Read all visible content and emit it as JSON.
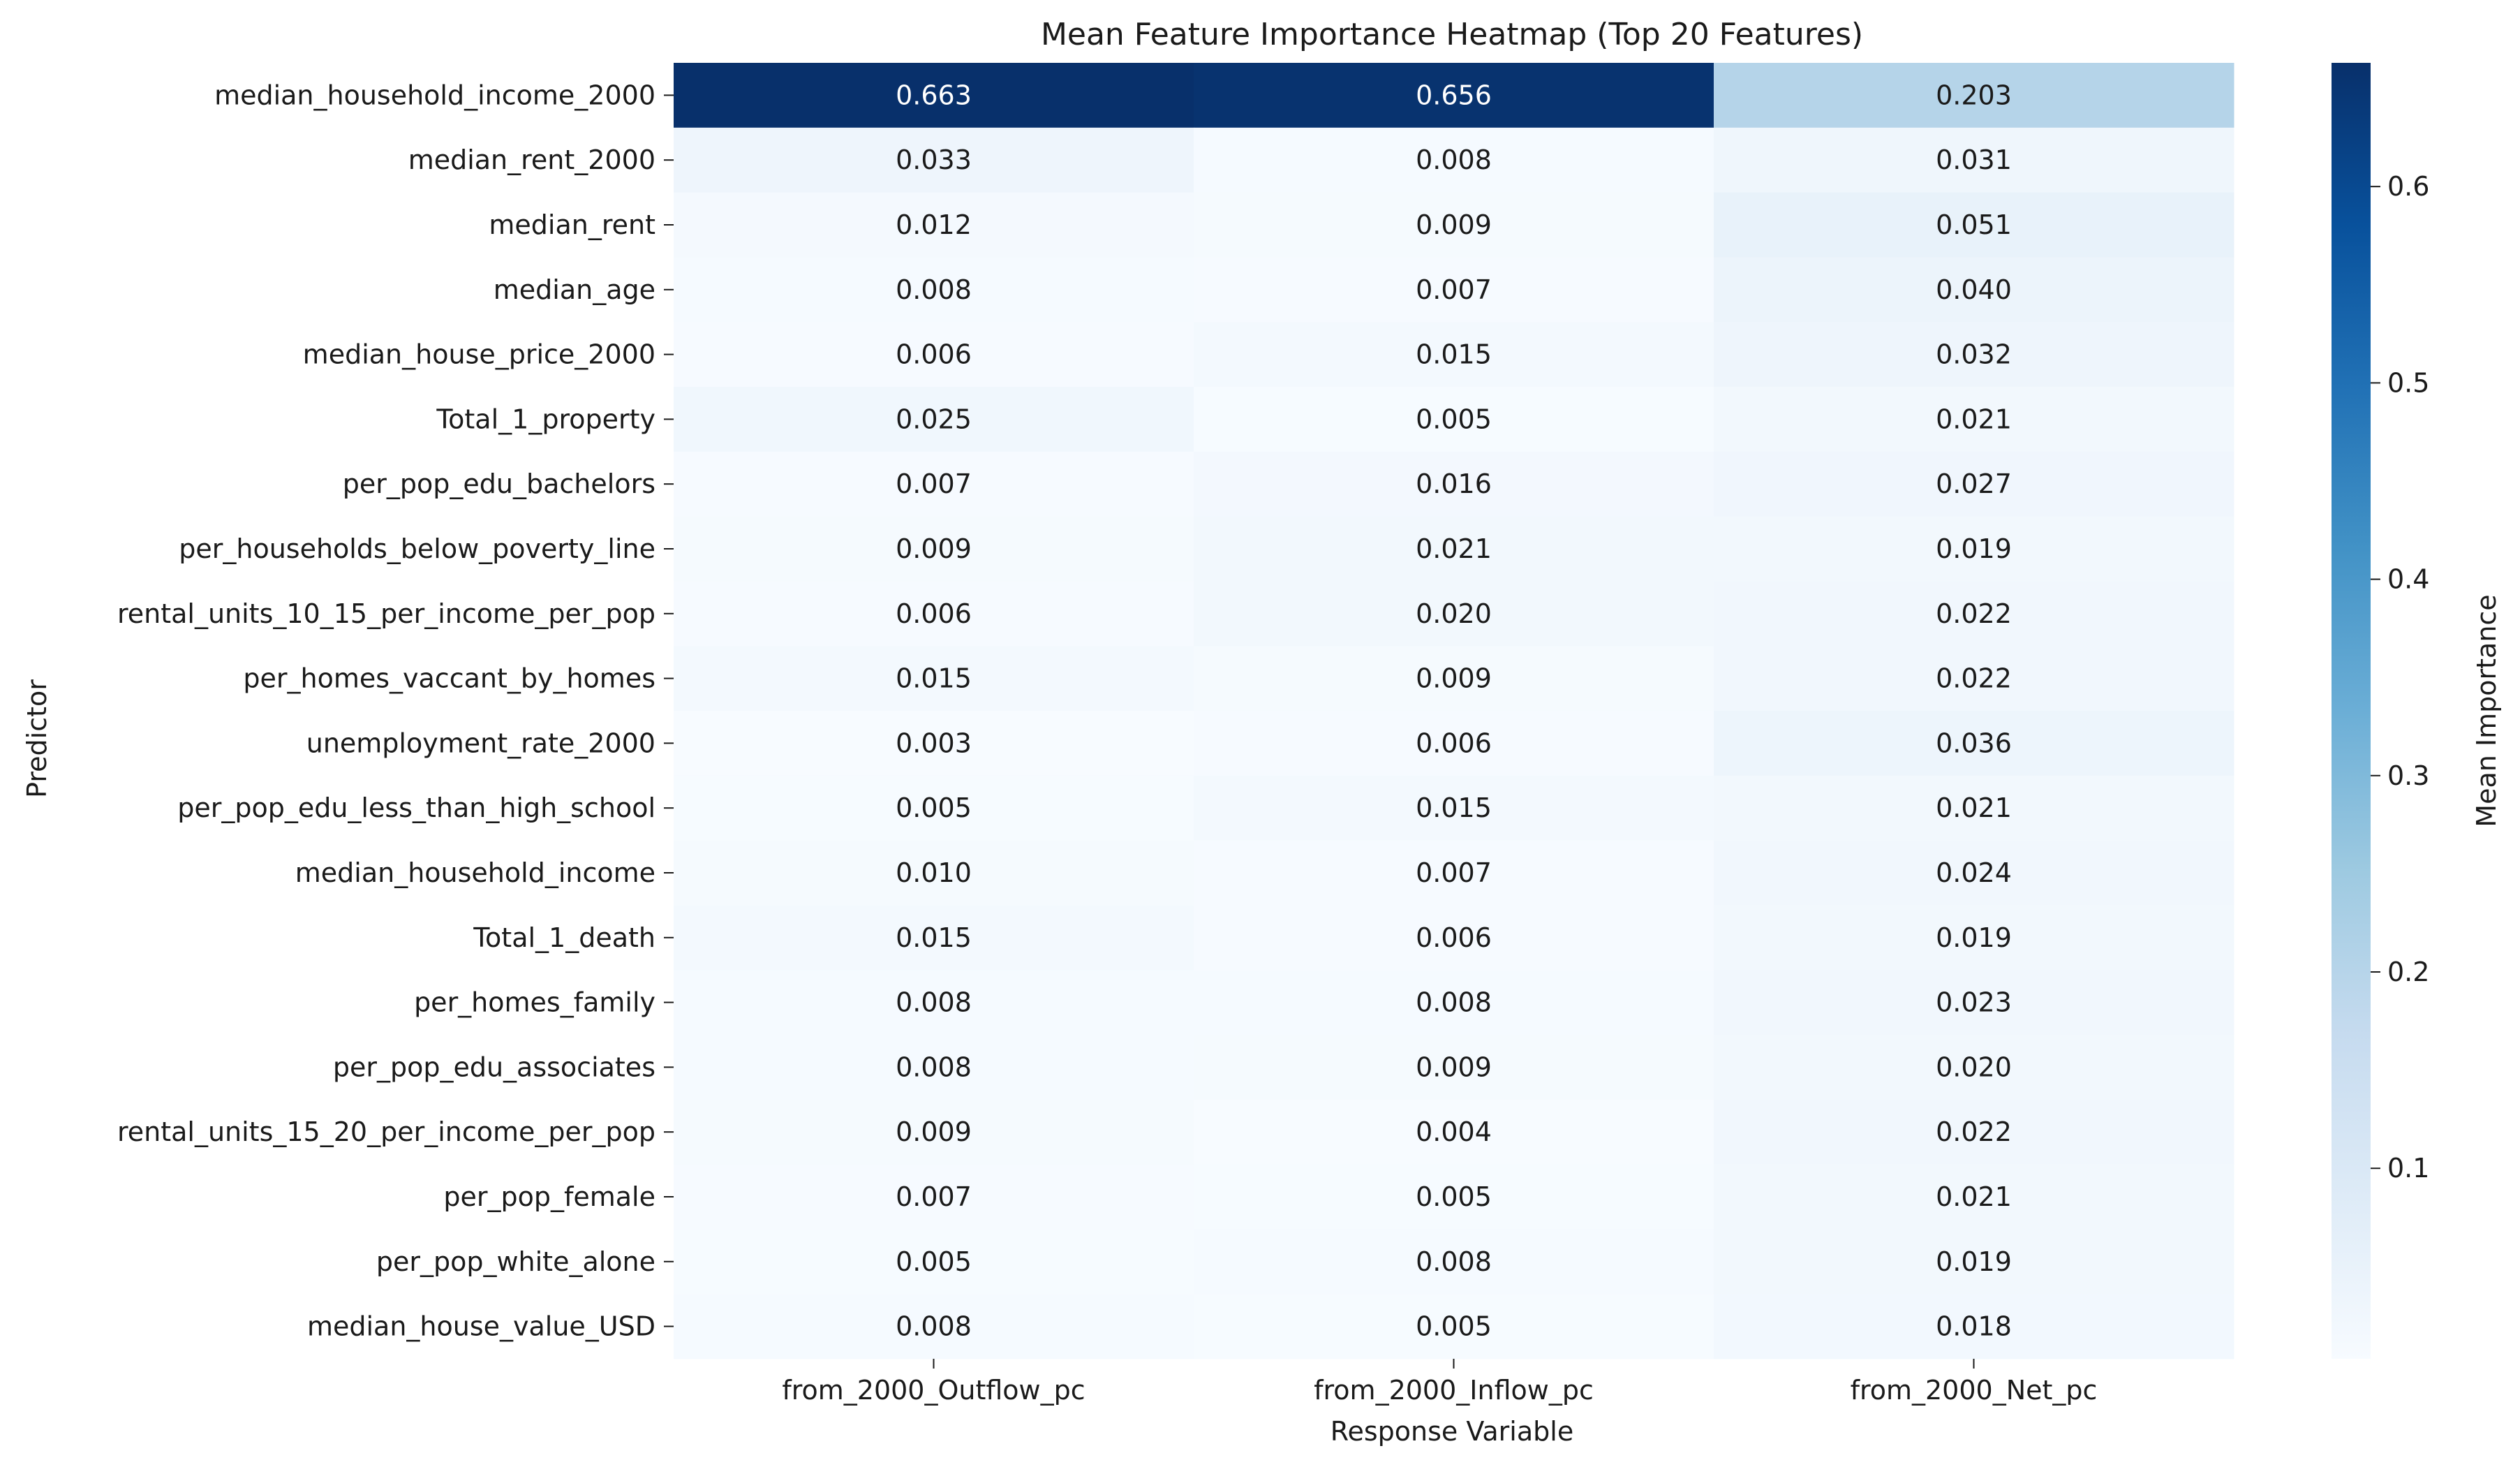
{
  "chart_data": {
    "type": "heatmap",
    "title": "Mean Feature Importance Heatmap (Top 20 Features)",
    "xlabel": "Response Variable",
    "ylabel": "Predictor",
    "colorbar_label": "Mean Importance",
    "colormap": "Blues",
    "colorbar_range": [
      0.003,
      0.663
    ],
    "colorbar_ticks": [
      "0.1",
      "0.2",
      "0.3",
      "0.4",
      "0.5",
      "0.6"
    ],
    "columns": [
      "from_2000_Outflow_pc",
      "from_2000_Inflow_pc",
      "from_2000_Net_pc"
    ],
    "rows": [
      "median_household_income_2000",
      "median_rent_2000",
      "median_rent",
      "median_age",
      "median_house_price_2000",
      "Total_1_property",
      "per_pop_edu_bachelors",
      "per_households_below_poverty_line",
      "rental_units_10_15_per_income_per_pop",
      "per_homes_vaccant_by_homes",
      "unemployment_rate_2000",
      "per_pop_edu_less_than_high_school",
      "median_household_income",
      "Total_1_death",
      "per_homes_family",
      "per_pop_edu_associates",
      "rental_units_15_20_per_income_per_pop",
      "per_pop_female",
      "per_pop_white_alone",
      "median_house_value_USD"
    ],
    "values": [
      [
        "0.663",
        "0.656",
        "0.203"
      ],
      [
        "0.033",
        "0.008",
        "0.031"
      ],
      [
        "0.012",
        "0.009",
        "0.051"
      ],
      [
        "0.008",
        "0.007",
        "0.040"
      ],
      [
        "0.006",
        "0.015",
        "0.032"
      ],
      [
        "0.025",
        "0.005",
        "0.021"
      ],
      [
        "0.007",
        "0.016",
        "0.027"
      ],
      [
        "0.009",
        "0.021",
        "0.019"
      ],
      [
        "0.006",
        "0.020",
        "0.022"
      ],
      [
        "0.015",
        "0.009",
        "0.022"
      ],
      [
        "0.003",
        "0.006",
        "0.036"
      ],
      [
        "0.005",
        "0.015",
        "0.021"
      ],
      [
        "0.010",
        "0.007",
        "0.024"
      ],
      [
        "0.015",
        "0.006",
        "0.019"
      ],
      [
        "0.008",
        "0.008",
        "0.023"
      ],
      [
        "0.008",
        "0.009",
        "0.020"
      ],
      [
        "0.009",
        "0.004",
        "0.022"
      ],
      [
        "0.007",
        "0.005",
        "0.021"
      ],
      [
        "0.005",
        "0.008",
        "0.019"
      ],
      [
        "0.008",
        "0.005",
        "0.018"
      ]
    ]
  }
}
